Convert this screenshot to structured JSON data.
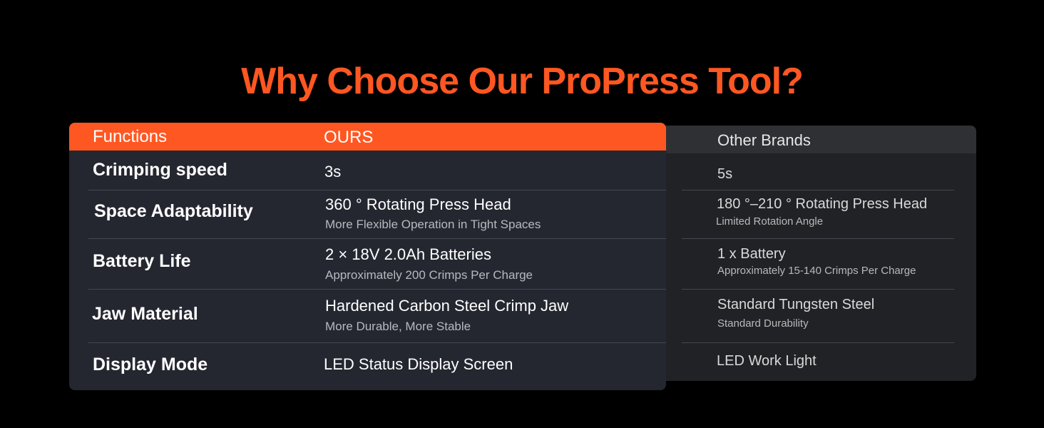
{
  "title": "Why Choose Our ProPress Tool?",
  "colors": {
    "accent": "#ff5722",
    "ours_panel": "#242730",
    "other_panel": "#212226",
    "background": "#000000"
  },
  "table": {
    "headers": {
      "functions": "Functions",
      "ours": "OURS",
      "other": "Other Brands"
    },
    "rows": [
      {
        "function": "Crimping speed",
        "ours_main": "3s",
        "ours_sub": "",
        "other_main": "5s",
        "other_sub": ""
      },
      {
        "function": "Space Adaptability",
        "ours_main": "360 ° Rotating Press Head",
        "ours_sub": "More Flexible Operation in Tight Spaces",
        "other_main": "180 °–210 ° Rotating Press Head",
        "other_sub": "Limited Rotation Angle"
      },
      {
        "function": "Battery Life",
        "ours_main": "2 × 18V 2.0Ah Batteries",
        "ours_sub": "Approximately 200 Crimps Per Charge",
        "other_main": "1 x Battery",
        "other_sub": "Approximately 15-140 Crimps Per Charge"
      },
      {
        "function": "Jaw Material",
        "ours_main": "Hardened Carbon Steel Crimp Jaw",
        "ours_sub": "More Durable, More Stable",
        "other_main": "Standard Tungsten Steel",
        "other_sub": "Standard Durability"
      },
      {
        "function": "Display Mode",
        "ours_main": "LED Status Display Screen",
        "ours_sub": "",
        "other_main": "LED Work Light",
        "other_sub": ""
      }
    ]
  }
}
